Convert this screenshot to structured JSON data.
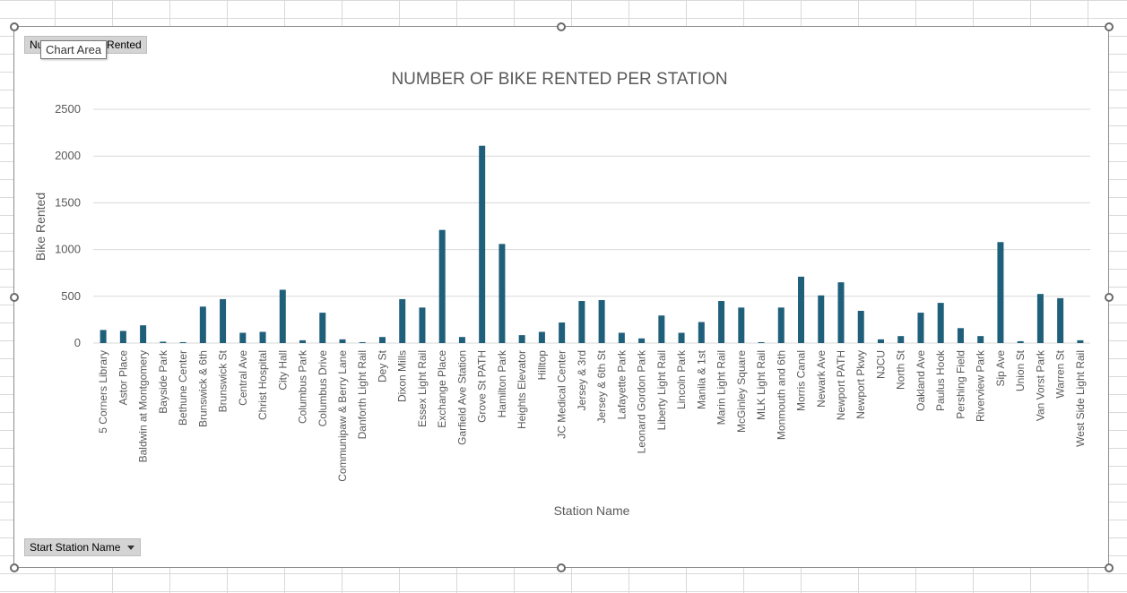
{
  "field_buttons": {
    "value_field": "Number of Bike Rented",
    "axis_field": "Start Station  Name"
  },
  "tooltip": "Chart Area",
  "colors": {
    "bar": "#1f5f7a",
    "gridline": "#d9d9d9",
    "text": "#595959"
  },
  "chart_data": {
    "type": "bar",
    "title": "NUMBER OF BIKE RENTED PER STATION",
    "xlabel": "Station Name",
    "ylabel": "Bike Rented",
    "ylim": [
      0,
      2500
    ],
    "yticks": [
      0,
      500,
      1000,
      1500,
      2000,
      2500
    ],
    "grid": true,
    "categories": [
      "5 Corners Library",
      "Astor Place",
      "Baldwin at Montgomery",
      "Bayside Park",
      "Bethune Center",
      "Brunswick & 6th",
      "Brunswick St",
      "Central Ave",
      "Christ Hospital",
      "City Hall",
      "Columbus Park",
      "Columbus Drive",
      "Communipaw & Berry Lane",
      "Danforth Light Rail",
      "Dey St",
      "Dixon Mills",
      "Essex Light Rail",
      "Exchange Place",
      "Garfield Ave Station",
      "Grove St PATH",
      "Hamilton Park",
      "Heights Elevator",
      "Hilltop",
      "JC Medical Center",
      "Jersey & 3rd",
      "Jersey & 6th St",
      "Lafayette Park",
      "Leonard Gordon Park",
      "Liberty Light Rail",
      "Lincoln Park",
      "Manila & 1st",
      "Marin Light Rail",
      "McGinley Square",
      "MLK Light Rail",
      "Monmouth and 6th",
      "Morris Canal",
      "Newark Ave",
      "Newport PATH",
      "Newport Pkwy",
      "NJCU",
      "North St",
      "Oakland Ave",
      "Paulus Hook",
      "Pershing Field",
      "Riverview Park",
      "Sip Ave",
      "Union St",
      "Van Vorst Park",
      "Warren St",
      "West Side Light Rail"
    ],
    "series": [
      {
        "values": [
          140,
          130,
          190,
          15,
          10,
          390,
          470,
          110,
          120,
          570,
          30,
          325,
          40,
          10,
          65,
          470,
          380,
          1210,
          65,
          2110,
          1060,
          85,
          120,
          220,
          450,
          460,
          110,
          50,
          295,
          110,
          225,
          450,
          380,
          10,
          380,
          710,
          510,
          650,
          345,
          40,
          75,
          325,
          430,
          160,
          75,
          1080,
          20,
          525,
          480,
          30
        ]
      }
    ]
  }
}
